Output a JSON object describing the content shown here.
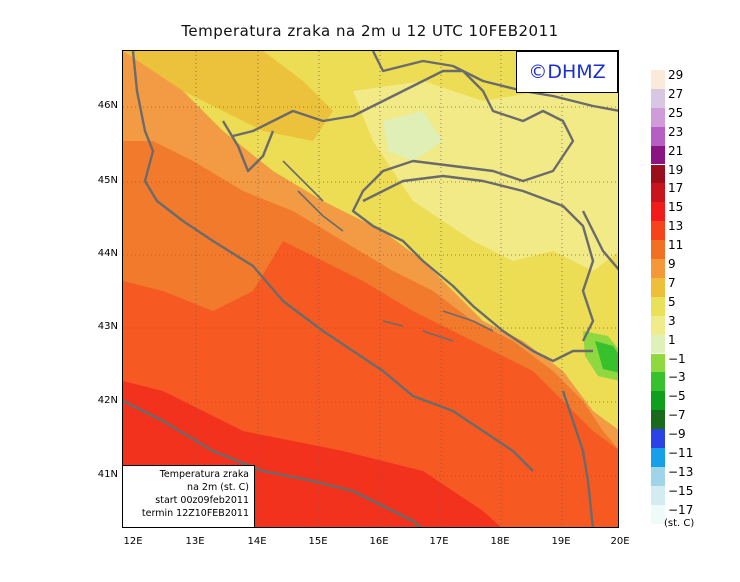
{
  "title": "Temperatura zraka na 2m u 12 UTC 10FEB2011",
  "logo": "©DHMZ",
  "info": {
    "line1": "Temperatura zraka",
    "line2": "na 2m (st. C)",
    "line3": "start 00z09feb2011",
    "line4": "termin 12Z10FEB2011"
  },
  "lat_labels": [
    "46N",
    "45N",
    "44N",
    "43N",
    "42N",
    "41N"
  ],
  "lon_labels": [
    "12E",
    "13E",
    "14E",
    "15E",
    "16E",
    "17E",
    "18E",
    "19E",
    "20E"
  ],
  "legend": {
    "unit": "(st. C)",
    "labels": [
      "29",
      "27",
      "25",
      "23",
      "21",
      "19",
      "17",
      "15",
      "13",
      "11",
      "9",
      "7",
      "5",
      "3",
      "1",
      "−1",
      "−3",
      "−5",
      "−7",
      "−9",
      "−11",
      "−13",
      "−15",
      "−17"
    ],
    "colors": [
      "#fbe9d9",
      "#d8c6e2",
      "#cf9bd8",
      "#b65ec4",
      "#8a1582",
      "#9a0f1b",
      "#c8141c",
      "#f21b1b",
      "#f6431b",
      "#f27024",
      "#f4983a",
      "#eec039",
      "#eae15a",
      "#f0ec8c",
      "#dff0b8",
      "#8fd83f",
      "#37c12c",
      "#0f9f1e",
      "#1b6a1c",
      "#2b43e6",
      "#16a0ea",
      "#9fd4e9",
      "#d2ecf1",
      "#eefbf9"
    ]
  },
  "colors": {
    "coast": "#6b6b6b",
    "t13": "#f65a22",
    "t11": "#f27a2c",
    "t9": "#f29b44",
    "t7": "#ecc23c",
    "t5": "#ecdd55",
    "t3": "#f2ea86",
    "t1": "#dfefb5",
    "m1": "#8fd83f",
    "m3": "#37c12c",
    "t15": "#f2321c"
  }
}
